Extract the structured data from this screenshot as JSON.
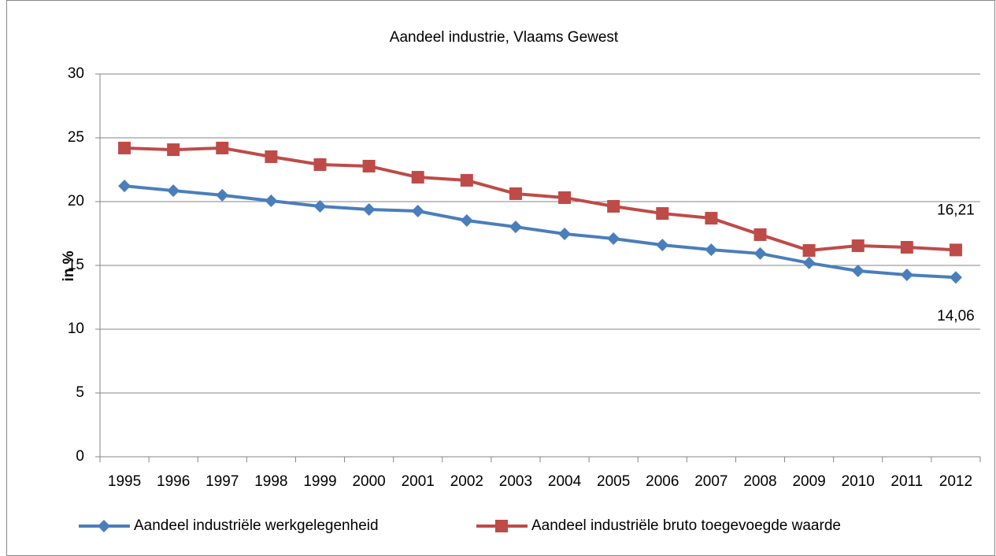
{
  "chart_data": {
    "type": "line",
    "title": "Aandeel industrie,  Vlaams Gewest",
    "y_label": "in %",
    "categories": [
      "1995",
      "1996",
      "1997",
      "1998",
      "1999",
      "2000",
      "2001",
      "2002",
      "2003",
      "2004",
      "2005",
      "2006",
      "2007",
      "2008",
      "2009",
      "2010",
      "2011",
      "2012"
    ],
    "series": [
      {
        "name": "Aandeel industriële werkgelegenheid",
        "color": "#4a7ebb",
        "marker": "diamond",
        "values": [
          21.23,
          20.86,
          20.5,
          20.06,
          19.63,
          19.38,
          19.26,
          18.52,
          18.02,
          17.47,
          17.1,
          16.6,
          16.23,
          15.93,
          15.19,
          14.57,
          14.26,
          14.06
        ],
        "value_labels": [
          null,
          null,
          null,
          null,
          null,
          null,
          null,
          null,
          null,
          null,
          null,
          null,
          null,
          null,
          null,
          null,
          null,
          "14,06"
        ]
      },
      {
        "name": "Aandeel industriële bruto toegevoegde waarde",
        "color": "#be4b48",
        "marker": "square",
        "values": [
          24.2,
          24.07,
          24.2,
          23.52,
          22.9,
          22.78,
          21.91,
          21.67,
          20.62,
          20.31,
          19.63,
          19.07,
          18.7,
          17.41,
          16.17,
          16.54,
          16.42,
          16.21
        ],
        "value_labels": [
          null,
          null,
          null,
          null,
          null,
          null,
          null,
          null,
          null,
          null,
          null,
          null,
          null,
          null,
          null,
          null,
          null,
          "16,21"
        ]
      }
    ],
    "ylim": [
      0,
      30
    ],
    "yticks": [
      0,
      5,
      10,
      15,
      20,
      25,
      30
    ],
    "grid": true,
    "legend": "bottom"
  }
}
